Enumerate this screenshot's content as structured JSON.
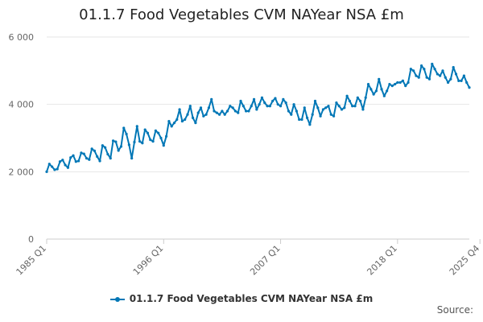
{
  "chart_data": {
    "type": "line",
    "title": "01.1.7 Food Vegetables CVM NAYear NSA £m",
    "xlabel": "",
    "ylabel": "",
    "y_ticks": [
      0,
      2000,
      4000,
      6000
    ],
    "y_tick_labels": [
      "0",
      "2 000",
      "4 000",
      "6 000"
    ],
    "ylim": [
      0,
      6000
    ],
    "x_tick_labels": [
      "1985 Q1",
      "1996 Q1",
      "2007 Q1",
      "2018 Q1",
      "2025 Q4"
    ],
    "x_start": {
      "year": 1985,
      "quarter": 1
    },
    "series": [
      {
        "name": "01.1.7 Food Vegetables CVM NAYear NSA £m",
        "color": "#0077B6",
        "values": [
          2000,
          2230,
          2150,
          2060,
          2080,
          2300,
          2350,
          2200,
          2120,
          2420,
          2480,
          2300,
          2320,
          2560,
          2530,
          2400,
          2360,
          2680,
          2620,
          2450,
          2320,
          2780,
          2720,
          2520,
          2400,
          2920,
          2890,
          2630,
          2750,
          3300,
          3120,
          2800,
          2400,
          2880,
          3350,
          2900,
          2850,
          3250,
          3150,
          2950,
          2900,
          3220,
          3150,
          3000,
          2780,
          3050,
          3500,
          3350,
          3450,
          3550,
          3850,
          3500,
          3550,
          3700,
          3950,
          3600,
          3450,
          3750,
          3900,
          3650,
          3700,
          3900,
          4150,
          3800,
          3750,
          3700,
          3800,
          3700,
          3800,
          3950,
          3900,
          3800,
          3750,
          4100,
          3950,
          3800,
          3800,
          3950,
          4150,
          3850,
          4000,
          4200,
          4050,
          3950,
          3950,
          4100,
          4180,
          4000,
          3950,
          4150,
          4050,
          3800,
          3700,
          4000,
          3800,
          3550,
          3550,
          3900,
          3600,
          3400,
          3700,
          4100,
          3900,
          3650,
          3850,
          3900,
          3950,
          3700,
          3650,
          4050,
          3950,
          3850,
          3900,
          4250,
          4100,
          3950,
          3950,
          4200,
          4100,
          3850,
          4200,
          4600,
          4450,
          4300,
          4400,
          4750,
          4450,
          4250,
          4400,
          4600,
          4550,
          4600,
          4650,
          4650,
          4700,
          4550,
          4650,
          5050,
          5000,
          4850,
          4800,
          5150,
          5050,
          4800,
          4750,
          5200,
          5050,
          4900,
          4850,
          5000,
          4800,
          4650,
          4750,
          5100,
          4900,
          4700,
          4700,
          4850,
          4650,
          4500
        ]
      }
    ]
  },
  "legend": {
    "label": "01.1.7 Food Vegetables CVM NAYear NSA £m"
  },
  "footer": {
    "source_label": "Source:"
  }
}
